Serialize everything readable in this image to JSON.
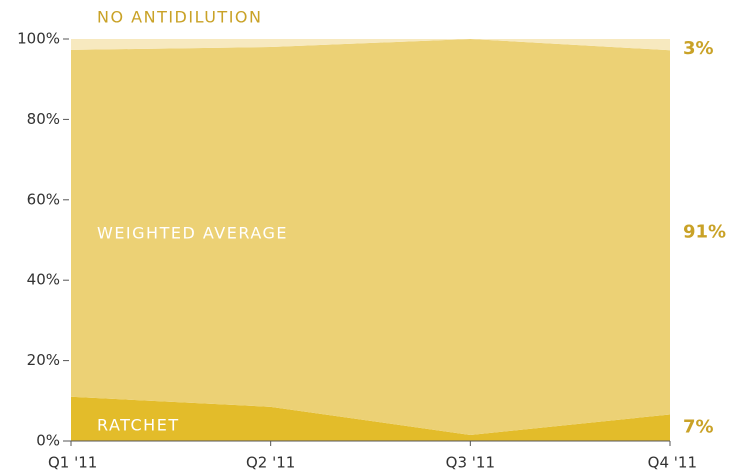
{
  "chart_data": {
    "type": "stacked_area",
    "categories": [
      "Q1 '11",
      "Q2 '11",
      "Q3 '11",
      "Q4 '11"
    ],
    "series": [
      {
        "name": "RATCHET",
        "color": "#e3bc2a",
        "values": [
          11,
          8.5,
          1.5,
          6.6
        ],
        "value_labels": [
          null,
          null,
          null,
          "7%"
        ]
      },
      {
        "name": "WEIGHTED AVERAGE",
        "color": "#ecd175",
        "values": [
          86.3,
          89.5,
          98.5,
          90.6
        ],
        "value_labels": [
          null,
          null,
          null,
          "91%"
        ]
      },
      {
        "name": "NO ANTIDILUTION",
        "color": "#f7e9bf",
        "values": [
          2.7,
          2,
          0,
          2.8
        ],
        "value_labels": [
          null,
          null,
          null,
          "3%"
        ]
      }
    ],
    "ylim": [
      0,
      100
    ],
    "yticks": [
      {
        "value": 0,
        "label": "0%"
      },
      {
        "value": 20,
        "label": "20%"
      },
      {
        "value": 40,
        "label": "40%"
      },
      {
        "value": 60,
        "label": "60%"
      },
      {
        "value": 80,
        "label": "80%"
      },
      {
        "value": 100,
        "label": "100%"
      }
    ]
  }
}
